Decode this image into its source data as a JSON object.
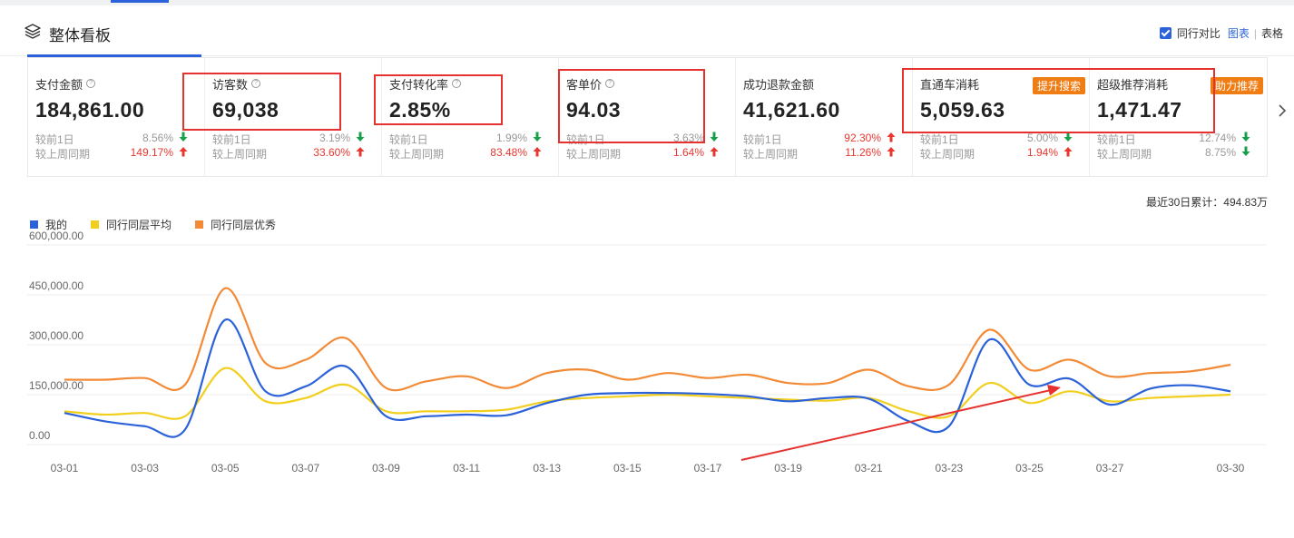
{
  "header": {
    "title": "整体看板",
    "compare_label": "同行对比",
    "view_chart": "图表",
    "view_table": "表格"
  },
  "cards": [
    {
      "label": "支付金额",
      "value": "184,861.00",
      "day_label": "较前1日",
      "day_pct": "8.56%",
      "day_dir": "down",
      "week_label": "较上周同期",
      "week_pct": "149.17%",
      "week_dir": "up"
    },
    {
      "label": "访客数",
      "value": "69,038",
      "day_label": "较前1日",
      "day_pct": "3.19%",
      "day_dir": "down",
      "week_label": "较上周同期",
      "week_pct": "33.60%",
      "week_dir": "up"
    },
    {
      "label": "支付转化率",
      "value": "2.85%",
      "day_label": "较前1日",
      "day_pct": "1.99%",
      "day_dir": "down",
      "week_label": "较上周同期",
      "week_pct": "83.48%",
      "week_dir": "up"
    },
    {
      "label": "客单价",
      "value": "94.03",
      "day_label": "较前1日",
      "day_pct": "3.63%",
      "day_dir": "down",
      "week_label": "较上周同期",
      "week_pct": "1.64%",
      "week_dir": "up"
    },
    {
      "label": "成功退款金额",
      "value": "41,621.60",
      "day_label": "较前1日",
      "day_pct": "92.30%",
      "day_dir": "up",
      "week_label": "较上周同期",
      "week_pct": "11.26%",
      "week_dir": "up"
    },
    {
      "label": "直通车消耗",
      "value": "5,059.63",
      "badge": "提升搜索",
      "day_label": "较前1日",
      "day_pct": "5.00%",
      "day_dir": "down",
      "week_label": "较上周同期",
      "week_pct": "1.94%",
      "week_dir": "up"
    },
    {
      "label": "超级推荐消耗",
      "value": "1,471.47",
      "badge": "助力推荐",
      "day_label": "较前1日",
      "day_pct": "12.74%",
      "day_dir": "down",
      "week_label": "较上周同期",
      "week_pct": "8.75%",
      "week_dir": "down"
    }
  ],
  "cumulative": "最近30日累计：494.83万",
  "colors": {
    "mine": "#2b62d9",
    "avg": "#f2cf1d",
    "top": "#f28a36",
    "up": "#e8372f",
    "down": "#18a04a",
    "highlight": "#e5322f"
  },
  "chart_data": {
    "type": "line",
    "x": [
      "03-01",
      "03-02",
      "03-03",
      "03-04",
      "03-05",
      "03-06",
      "03-07",
      "03-08",
      "03-09",
      "03-10",
      "03-11",
      "03-12",
      "03-13",
      "03-14",
      "03-15",
      "03-16",
      "03-17",
      "03-18",
      "03-19",
      "03-20",
      "03-21",
      "03-22",
      "03-23",
      "03-24",
      "03-25",
      "03-26",
      "03-27",
      "03-28",
      "03-29",
      "03-30"
    ],
    "xticks": [
      "03-01",
      "03-03",
      "03-05",
      "03-07",
      "03-09",
      "03-11",
      "03-13",
      "03-15",
      "03-17",
      "03-19",
      "03-21",
      "03-23",
      "03-25",
      "03-27",
      "03-30"
    ],
    "yticks": [
      "0.00",
      "150,000.00",
      "300,000.00",
      "450,000.00",
      "600,000.00"
    ],
    "ylim": [
      0,
      600000
    ],
    "series": [
      {
        "name": "我的",
        "values": [
          95000,
          70000,
          55000,
          45000,
          375000,
          160000,
          175000,
          235000,
          85000,
          85000,
          90000,
          88000,
          125000,
          150000,
          155000,
          155000,
          152000,
          145000,
          130000,
          140000,
          138000,
          70000,
          55000,
          315000,
          180000,
          198000,
          120000,
          168000,
          178000,
          160000
        ]
      },
      {
        "name": "同行同层平均",
        "values": [
          100000,
          90000,
          95000,
          85000,
          230000,
          130000,
          140000,
          180000,
          100000,
          100000,
          100000,
          105000,
          130000,
          140000,
          145000,
          150000,
          145000,
          140000,
          135000,
          132000,
          140000,
          100000,
          85000,
          185000,
          125000,
          160000,
          130000,
          140000,
          145000,
          150000
        ]
      },
      {
        "name": "同行同层优秀",
        "values": [
          195000,
          195000,
          200000,
          180000,
          470000,
          245000,
          255000,
          320000,
          170000,
          190000,
          205000,
          170000,
          215000,
          225000,
          195000,
          215000,
          200000,
          210000,
          185000,
          185000,
          225000,
          175000,
          180000,
          345000,
          225000,
          255000,
          205000,
          215000,
          220000,
          240000
        ]
      }
    ]
  }
}
